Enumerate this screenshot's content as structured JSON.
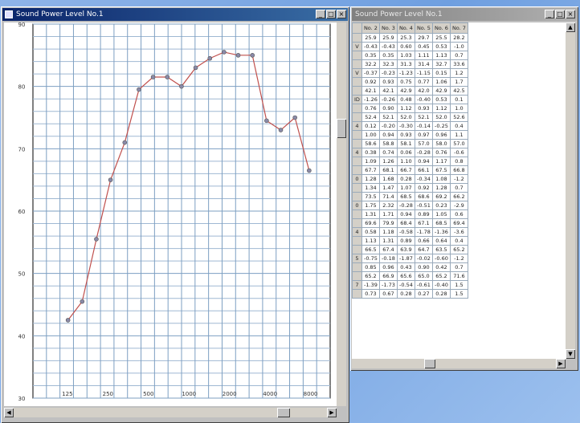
{
  "left_window": {
    "title": "Sound Power Level No.1",
    "controls": [
      "_",
      "□",
      "×"
    ]
  },
  "right_window": {
    "title": "Sound Power Level No.1",
    "controls": [
      "_",
      "□",
      "×"
    ]
  },
  "chart_data": {
    "type": "line",
    "title": "",
    "xlabel": "",
    "ylabel": "",
    "x_tick_labels": [
      "125",
      "250",
      "500",
      "1000",
      "2000",
      "4000",
      "8000"
    ],
    "y_tick_labels": [
      "30",
      "40",
      "50",
      "60",
      "70",
      "80",
      "90"
    ],
    "ylim": [
      30,
      90
    ],
    "grid": true,
    "series": [
      {
        "color": "#c0504d",
        "values": [
          42.5,
          45.5,
          55.5,
          65.0,
          71.0,
          79.5,
          81.5,
          81.5,
          80.0,
          83.0,
          84.5,
          85.5,
          85.0,
          85.0,
          74.5,
          73.0,
          75.0,
          66.5
        ]
      }
    ]
  },
  "table": {
    "columns": [
      "No. 2",
      "No. 3",
      "No. 4",
      "No. 5",
      "No. 6",
      "No. 7"
    ],
    "row_labels": [
      "",
      "V",
      "",
      "",
      "V",
      "",
      "",
      "ID",
      "",
      "",
      "4",
      "",
      "",
      "4",
      "",
      "",
      "0",
      "",
      "",
      "0",
      "",
      "",
      "4",
      "",
      "",
      "5",
      "",
      "",
      "7",
      "",
      "",
      "0",
      ""
    ],
    "rows": [
      [
        "25.9",
        "25.9",
        "25.3",
        "29.7",
        "25.5",
        "28.2"
      ],
      [
        "-0.43",
        "-0.43",
        "0.60",
        "0.45",
        "0.53",
        "-1.0"
      ],
      [
        "0.35",
        "0.35",
        "1.03",
        "1.11",
        "1.13",
        "0.7"
      ],
      [
        "32.2",
        "32.3",
        "31.3",
        "31.4",
        "32.7",
        "33.6"
      ],
      [
        "-0.37",
        "-0.23",
        "-1.23",
        "-1.15",
        "0.15",
        "1.2"
      ],
      [
        "0.92",
        "0.93",
        "0.75",
        "0.77",
        "1.06",
        "1.7"
      ],
      [
        "42.1",
        "42.1",
        "42.9",
        "42.0",
        "42.9",
        "42.5"
      ],
      [
        "-1.26",
        "-0.26",
        "0.48",
        "-0.40",
        "0.53",
        "0.1"
      ],
      [
        "0.76",
        "0.90",
        "1.12",
        "0.93",
        "1.12",
        "1.0"
      ],
      [
        "52.4",
        "52.1",
        "52.0",
        "52.1",
        "52.0",
        "52.6"
      ],
      [
        "0.12",
        "-0.20",
        "-0.30",
        "-0.14",
        "-0.25",
        "0.4"
      ],
      [
        "1.00",
        "0.94",
        "0.93",
        "0.97",
        "0.96",
        "1.1"
      ],
      [
        "58.6",
        "58.8",
        "58.1",
        "57.0",
        "58.0",
        "57.0"
      ],
      [
        "0.38",
        "0.74",
        "0.06",
        "-0.28",
        "0.76",
        "-0.6"
      ],
      [
        "1.09",
        "1.26",
        "1.10",
        "0.94",
        "1.17",
        "0.8"
      ],
      [
        "67.7",
        "68.1",
        "66.7",
        "66.1",
        "67.5",
        "66.8"
      ],
      [
        "1.28",
        "1.68",
        "0.28",
        "-0.34",
        "1.08",
        "-1.2"
      ],
      [
        "1.34",
        "1.47",
        "1.07",
        "0.92",
        "1.28",
        "0.7"
      ],
      [
        "73.5",
        "71.4",
        "68.5",
        "68.6",
        "69.2",
        "66.2"
      ],
      [
        "1.75",
        "2.32",
        "-0.28",
        "-0.51",
        "0.23",
        "-2.9"
      ],
      [
        "1.31",
        "1.71",
        "0.94",
        "0.89",
        "1.05",
        "0.6"
      ],
      [
        "69.6",
        "79.9",
        "68.4",
        "67.1",
        "68.5",
        "69.4"
      ],
      [
        "0.58",
        "1.18",
        "-0.58",
        "-1.78",
        "-1.36",
        "-3.6"
      ],
      [
        "1.13",
        "1.31",
        "0.89",
        "0.66",
        "0.64",
        "0.4"
      ],
      [
        "66.5",
        "67.4",
        "63.9",
        "64.7",
        "63.5",
        "65.2"
      ],
      [
        "-0.75",
        "-0.18",
        "-1.87",
        "-0.02",
        "-0.60",
        "-1.2"
      ],
      [
        "0.85",
        "0.96",
        "0.43",
        "0.90",
        "0.42",
        "0.7"
      ],
      [
        "65.2",
        "66.9",
        "65.6",
        "65.0",
        "65.2",
        "71.6"
      ],
      [
        "-1.39",
        "-1.73",
        "-0.54",
        "-0.61",
        "-0.40",
        "1.5"
      ],
      [
        "0.73",
        "0.67",
        "0.28",
        "0.27",
        "0.28",
        "1.5"
      ]
    ]
  }
}
